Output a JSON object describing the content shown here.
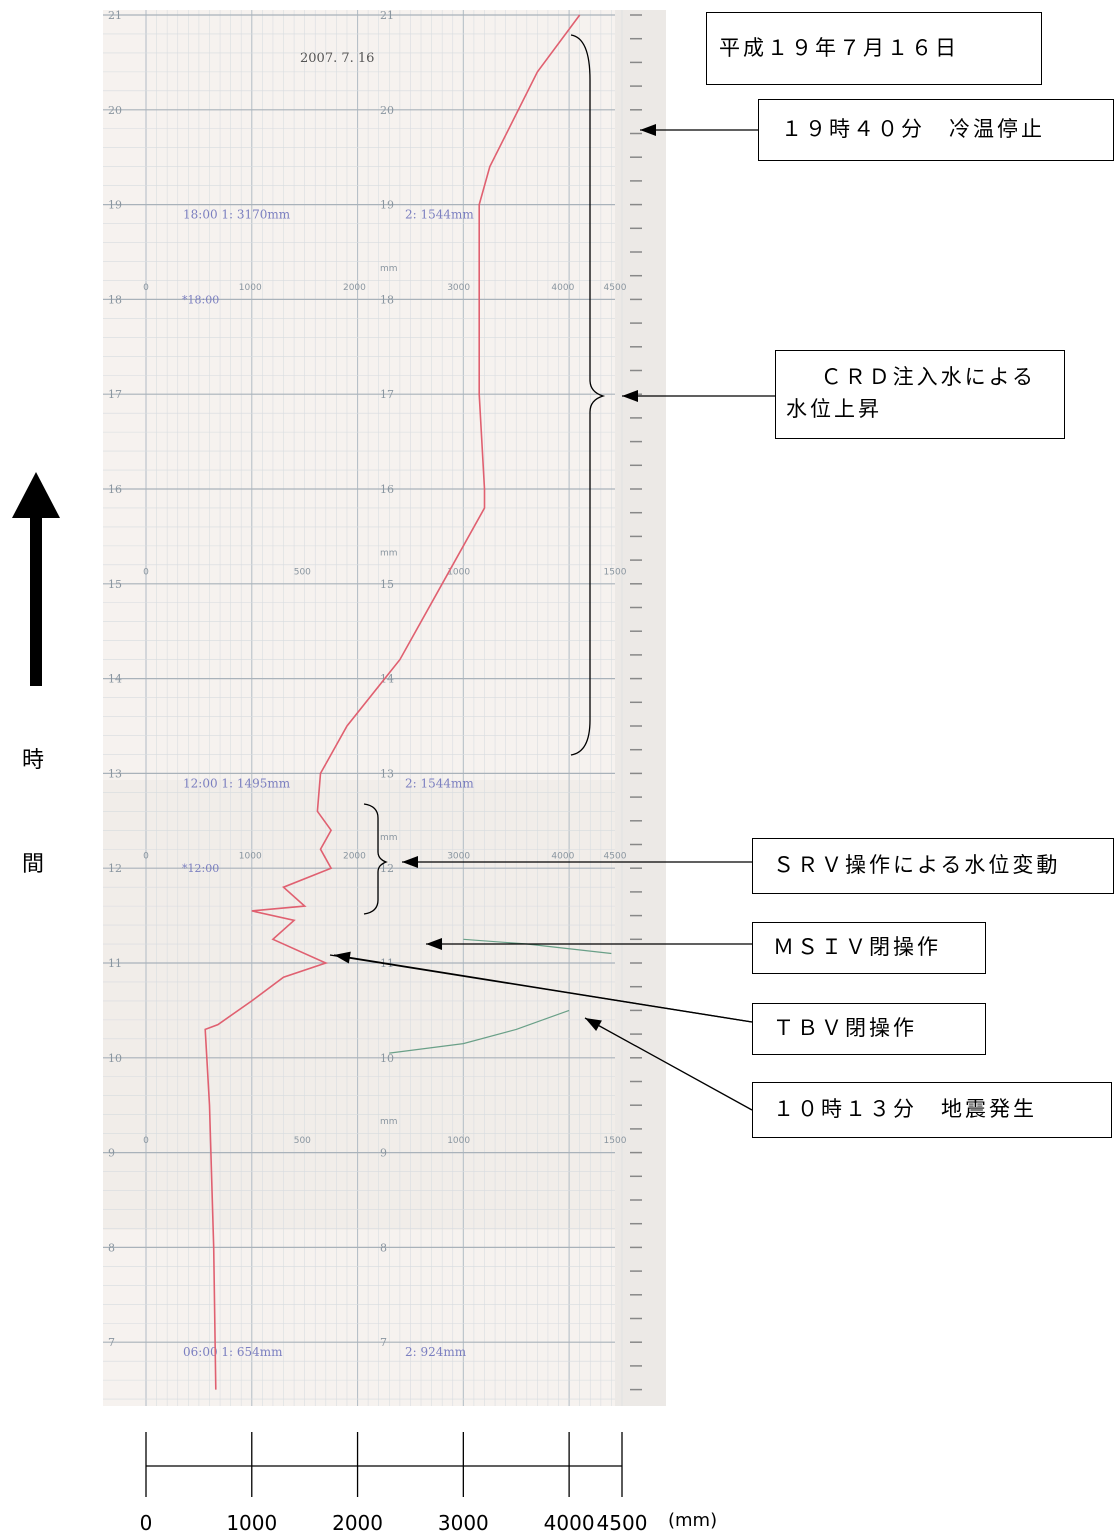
{
  "chart_data": {
    "type": "line",
    "title": "平成１９年７月１６日",
    "date_stamp": "2007. 7. 16",
    "xlabel_unit": "(mm)",
    "xlim": [
      0,
      4500
    ],
    "x_ticks": [
      "0",
      "1000",
      "2000",
      "3000",
      "4000",
      "4500"
    ],
    "ylabel": [
      "時",
      "間"
    ],
    "y_direction": "up",
    "y_range_hours": [
      6.5,
      21
    ],
    "hour_labels": [
      "21",
      "20",
      "19",
      "18",
      "17",
      "16",
      "15",
      "14",
      "13",
      "12",
      "11",
      "10",
      "9",
      "8",
      "7"
    ],
    "paper_scale_upper": [
      "0",
      "1000",
      "2000",
      "3000",
      "4000",
      "4500"
    ],
    "paper_scale_lower": [
      "0",
      "500",
      "1000",
      "1500"
    ],
    "paper_unit": "mm",
    "printouts": [
      {
        "time": "18:00",
        "ch1": "3170mm",
        "ch2": "1544mm",
        "mark": "*18:00"
      },
      {
        "time": "12:00",
        "ch1": "1495mm",
        "ch2": "1544mm",
        "mark": "*12:00"
      },
      {
        "time": "06:00",
        "ch1": "654mm",
        "ch2": "924mm"
      }
    ],
    "series": [
      {
        "color": "#e06070",
        "points": [
          [
            660,
            6.5
          ],
          [
            640,
            8.0
          ],
          [
            600,
            9.5
          ],
          [
            560,
            10.3
          ],
          [
            680,
            10.35
          ],
          [
            1000,
            10.6
          ],
          [
            1300,
            10.85
          ],
          [
            1700,
            11.0
          ],
          [
            1200,
            11.25
          ],
          [
            1400,
            11.45
          ],
          [
            1000,
            11.55
          ],
          [
            1500,
            11.6
          ],
          [
            1300,
            11.8
          ],
          [
            1750,
            12.0
          ],
          [
            1650,
            12.2
          ],
          [
            1750,
            12.4
          ],
          [
            1620,
            12.6
          ],
          [
            1650,
            13.0
          ],
          [
            1900,
            13.5
          ],
          [
            2400,
            14.2
          ],
          [
            2800,
            15.0
          ],
          [
            3200,
            15.8
          ],
          [
            3200,
            16.0
          ],
          [
            3150,
            17.0
          ],
          [
            3150,
            18.5
          ],
          [
            3150,
            19.0
          ],
          [
            3250,
            19.4
          ],
          [
            3700,
            20.4
          ],
          [
            4100,
            21.0
          ]
        ]
      },
      {
        "color": "#6aa088",
        "points": [
          [
            2300,
            10.05
          ],
          [
            3000,
            10.15
          ],
          [
            3500,
            10.3
          ],
          [
            4000,
            10.5
          ]
        ]
      },
      {
        "color": "#6aa088",
        "points": [
          [
            3000,
            11.25
          ],
          [
            3600,
            11.2
          ],
          [
            4400,
            11.1
          ]
        ]
      }
    ],
    "annotations": [
      {
        "text": "１９時４０分　冷温停止",
        "time": 19.67
      },
      {
        "text": "ＣＲＤ注入水による水位上昇",
        "lines": [
          "ＣＲＤ注入水による",
          "水位上昇"
        ],
        "time_range": [
          13,
          20.7
        ]
      },
      {
        "text": "ＳＲＶ操作による水位変動",
        "time_range": [
          11.3,
          12.4
        ]
      },
      {
        "text": "ＭＳＩＶ閉操作",
        "time": 11.0
      },
      {
        "text": "ＴＢＶ閉操作",
        "time": 10.4
      },
      {
        "text": "１０時１３分　地震発生",
        "time": 10.22
      }
    ]
  }
}
